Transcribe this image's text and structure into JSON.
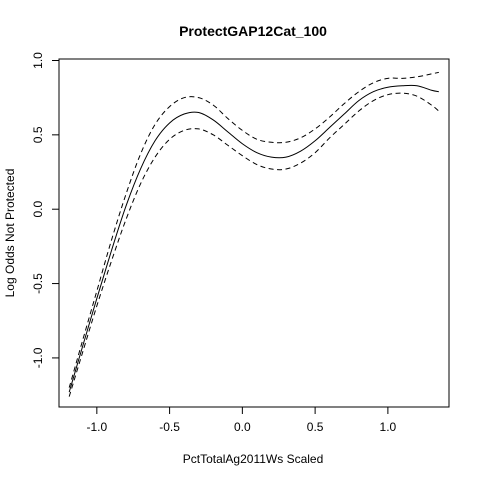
{
  "chart_data": {
    "type": "line",
    "title": "ProtectGAP12Cat_100",
    "xlabel": "PctTotalAg2011Ws Scaled",
    "ylabel": "Log Odds Not Protected",
    "xlim": [
      -1.26,
      1.42
    ],
    "ylim": [
      -1.33,
      1.01
    ],
    "x_ticks": [
      -1.0,
      -0.5,
      0.0,
      0.5,
      1.0
    ],
    "x_tick_labels": [
      "-1.0",
      "-0.5",
      "0.0",
      "0.5",
      "1.0"
    ],
    "y_ticks": [
      -1.0,
      -0.5,
      0.0,
      0.5,
      1.0
    ],
    "y_tick_labels": [
      "-1.0",
      "-0.5",
      "0.0",
      "0.5",
      "1.0"
    ],
    "grid": false,
    "legend": "none",
    "series": [
      {
        "style": "solid",
        "x": [
          -1.19,
          -1.1,
          -1.0,
          -0.9,
          -0.8,
          -0.7,
          -0.6,
          -0.5,
          -0.4,
          -0.3,
          -0.2,
          -0.1,
          0.0,
          0.1,
          0.2,
          0.3,
          0.4,
          0.5,
          0.6,
          0.7,
          0.8,
          0.9,
          1.0,
          1.1,
          1.2,
          1.3,
          1.35
        ],
        "y": [
          -1.23,
          -0.93,
          -0.6,
          -0.28,
          0.02,
          0.27,
          0.46,
          0.58,
          0.64,
          0.65,
          0.6,
          0.52,
          0.44,
          0.38,
          0.35,
          0.35,
          0.39,
          0.46,
          0.55,
          0.64,
          0.73,
          0.79,
          0.82,
          0.83,
          0.83,
          0.8,
          0.79
        ]
      },
      {
        "style": "dashed",
        "x": [
          -1.19,
          -1.1,
          -1.0,
          -0.9,
          -0.8,
          -0.7,
          -0.6,
          -0.5,
          -0.4,
          -0.3,
          -0.2,
          -0.1,
          0.0,
          0.1,
          0.2,
          0.3,
          0.4,
          0.5,
          0.6,
          0.7,
          0.8,
          0.9,
          1.0,
          1.1,
          1.2,
          1.3,
          1.35
        ],
        "y": [
          -1.2,
          -0.89,
          -0.55,
          -0.21,
          0.1,
          0.37,
          0.57,
          0.69,
          0.75,
          0.75,
          0.7,
          0.61,
          0.53,
          0.47,
          0.45,
          0.45,
          0.48,
          0.54,
          0.62,
          0.71,
          0.79,
          0.85,
          0.88,
          0.88,
          0.89,
          0.91,
          0.92
        ]
      },
      {
        "style": "dashed",
        "x": [
          -1.19,
          -1.1,
          -1.0,
          -0.9,
          -0.8,
          -0.7,
          -0.6,
          -0.5,
          -0.4,
          -0.3,
          -0.2,
          -0.1,
          0.0,
          0.1,
          0.2,
          0.3,
          0.4,
          0.5,
          0.6,
          0.7,
          0.8,
          0.9,
          1.0,
          1.1,
          1.2,
          1.3,
          1.35
        ],
        "y": [
          -1.26,
          -0.97,
          -0.65,
          -0.35,
          -0.07,
          0.17,
          0.35,
          0.47,
          0.53,
          0.54,
          0.5,
          0.43,
          0.36,
          0.3,
          0.27,
          0.27,
          0.31,
          0.38,
          0.48,
          0.57,
          0.66,
          0.73,
          0.77,
          0.78,
          0.76,
          0.7,
          0.66
        ]
      }
    ]
  }
}
